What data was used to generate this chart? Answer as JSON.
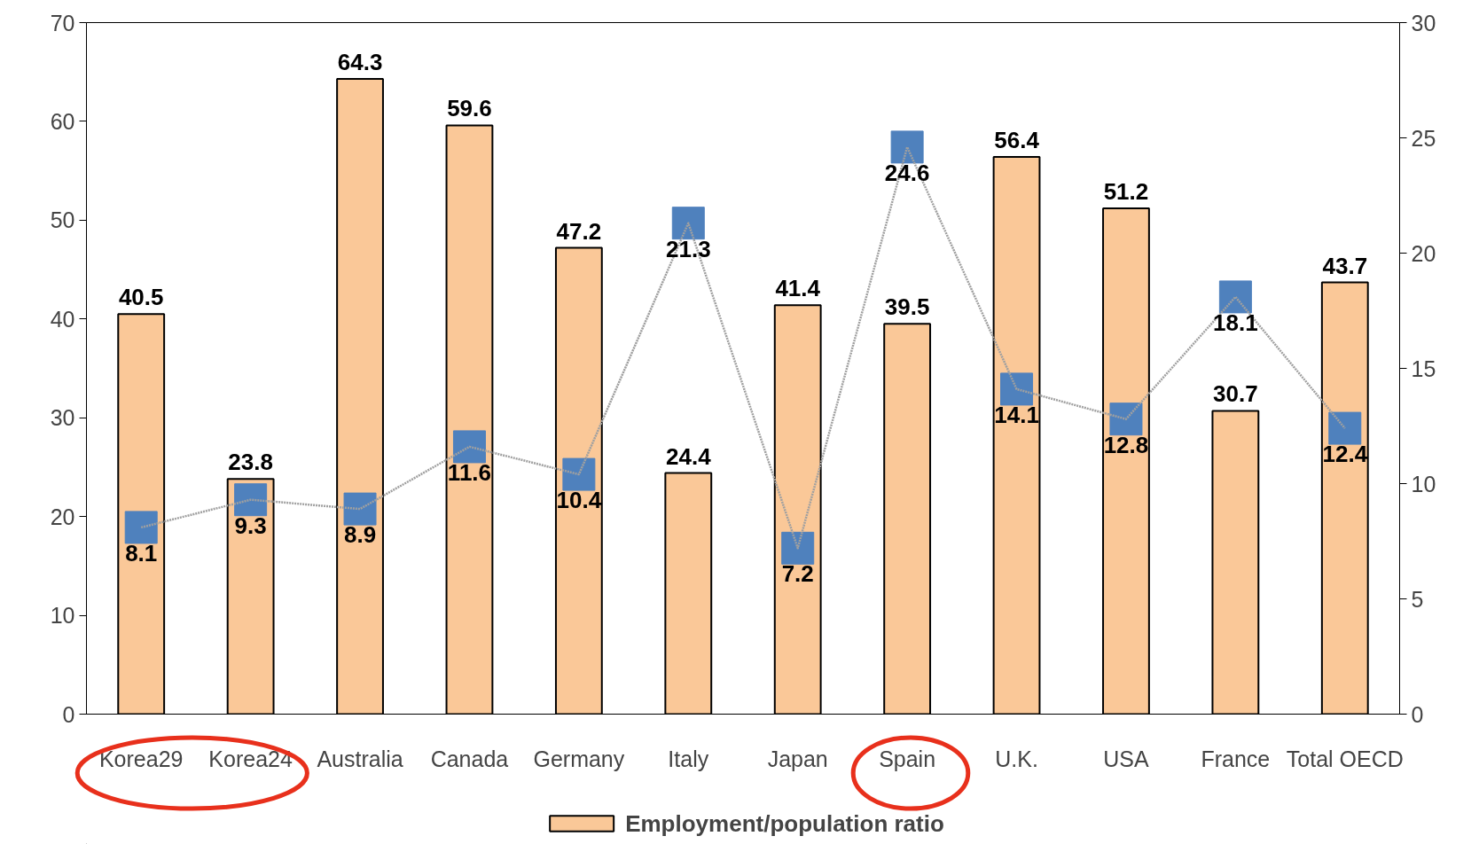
{
  "chart_data": {
    "type": "bar",
    "categories": [
      "Korea29",
      "Korea24",
      "Australia",
      "Canada",
      "Germany",
      "Italy",
      "Japan",
      "Spain",
      "U.K.",
      "USA",
      "France",
      "Total OECD"
    ],
    "series": [
      {
        "name": "Employment/population ratio",
        "color": "#fac898",
        "values": [
          40.5,
          23.8,
          64.3,
          59.6,
          47.2,
          24.4,
          41.4,
          39.5,
          56.4,
          51.2,
          30.7,
          43.7
        ]
      },
      {
        "type": "line",
        "axis": "y2",
        "color": "#4f81bd",
        "values": [
          8.1,
          9.3,
          8.9,
          11.6,
          10.4,
          21.3,
          7.2,
          24.6,
          14.1,
          12.8,
          18.1,
          12.4
        ]
      }
    ],
    "ylim": [
      0,
      70
    ],
    "yticks": [
      0,
      10,
      20,
      30,
      40,
      50,
      60,
      70
    ],
    "y2lim": [
      0,
      30
    ],
    "y2ticks": [
      0,
      5,
      10,
      15,
      20,
      25,
      30
    ],
    "data_labels": true,
    "grid": false,
    "legend": "bottom",
    "marker": "square",
    "line_style": "dotted"
  }
}
